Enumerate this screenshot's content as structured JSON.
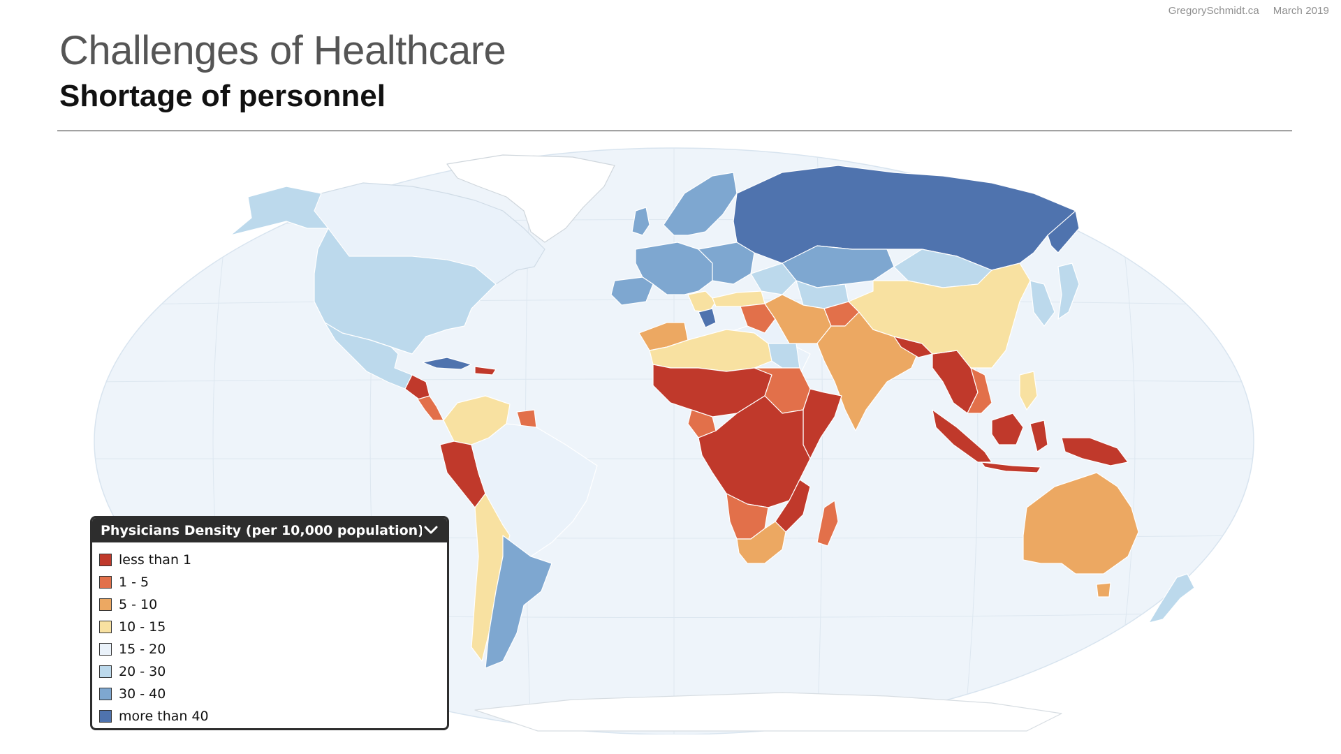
{
  "header": {
    "source": "GregorySchmidt.ca",
    "date": "March 2019",
    "title": "Challenges of Healthcare",
    "subtitle": "Shortage of personnel"
  },
  "legend": {
    "title": "Physicians Density (per 10,000 population)",
    "toggle_icon": "chevron-down-icon",
    "items": [
      {
        "label": "less than 1",
        "color": "#c0392b"
      },
      {
        "label": "1 - 5",
        "color": "#e2704a"
      },
      {
        "label": "5 - 10",
        "color": "#eca862"
      },
      {
        "label": "10 - 15",
        "color": "#f8e1a1"
      },
      {
        "label": "15 - 20",
        "color": "#eaf2fa"
      },
      {
        "label": "20 - 30",
        "color": "#bcd9ec"
      },
      {
        "label": "30 - 40",
        "color": "#7ea7d0"
      },
      {
        "label": "more than 40",
        "color": "#4f73ae"
      }
    ]
  },
  "map": {
    "ocean_color": "#eef4fa",
    "no_data_color": "#ffffff"
  }
}
